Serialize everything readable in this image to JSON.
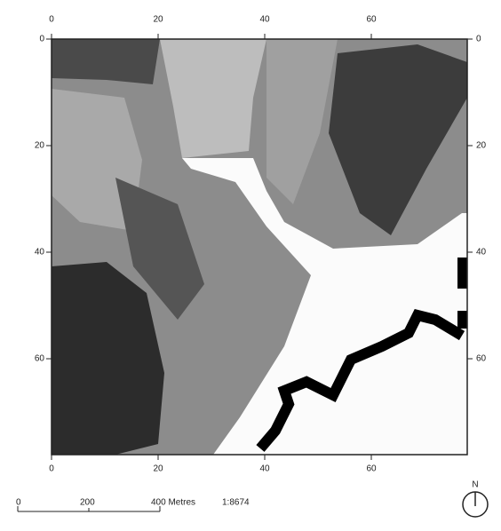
{
  "map": {
    "axes": {
      "xlim": [
        0,
        78
      ],
      "ylim": [
        0,
        78
      ],
      "xticks": [
        0,
        20,
        40,
        60
      ],
      "yticks": [
        0,
        20,
        40,
        60
      ]
    },
    "scale_bar": {
      "labels": [
        "0",
        "200",
        "400 Metres"
      ],
      "ratio": "1:8674"
    },
    "north": "N"
  }
}
